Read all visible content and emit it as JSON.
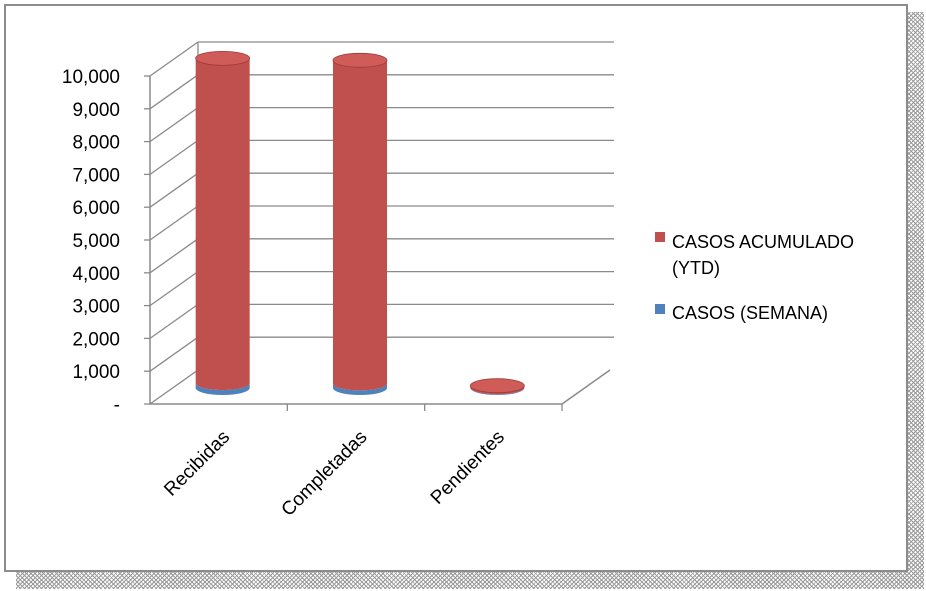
{
  "chart_data": {
    "type": "bar",
    "style": "3d-cylinder",
    "categories": [
      "Recibidas",
      "Completadas",
      "Pendientes"
    ],
    "series": [
      {
        "name": "CASOS ACUMULADO (YTD)",
        "color": "#c0504d",
        "values": [
          9900,
          9850,
          50
        ]
      },
      {
        "name": "CASOS (SEMANA)",
        "color": "#4f81bd",
        "values": [
          150,
          140,
          20
        ]
      }
    ],
    "y_ticks": [
      "-",
      "1,000",
      "2,000",
      "3,000",
      "4,000",
      "5,000",
      "6,000",
      "7,000",
      "8,000",
      "9,000",
      "10,000"
    ],
    "ylim": [
      0,
      10000
    ],
    "grid": true,
    "legend_position": "right",
    "legend_labels": [
      "CASOS ACUMULADO",
      "(YTD)",
      "CASOS (SEMANA)"
    ]
  }
}
